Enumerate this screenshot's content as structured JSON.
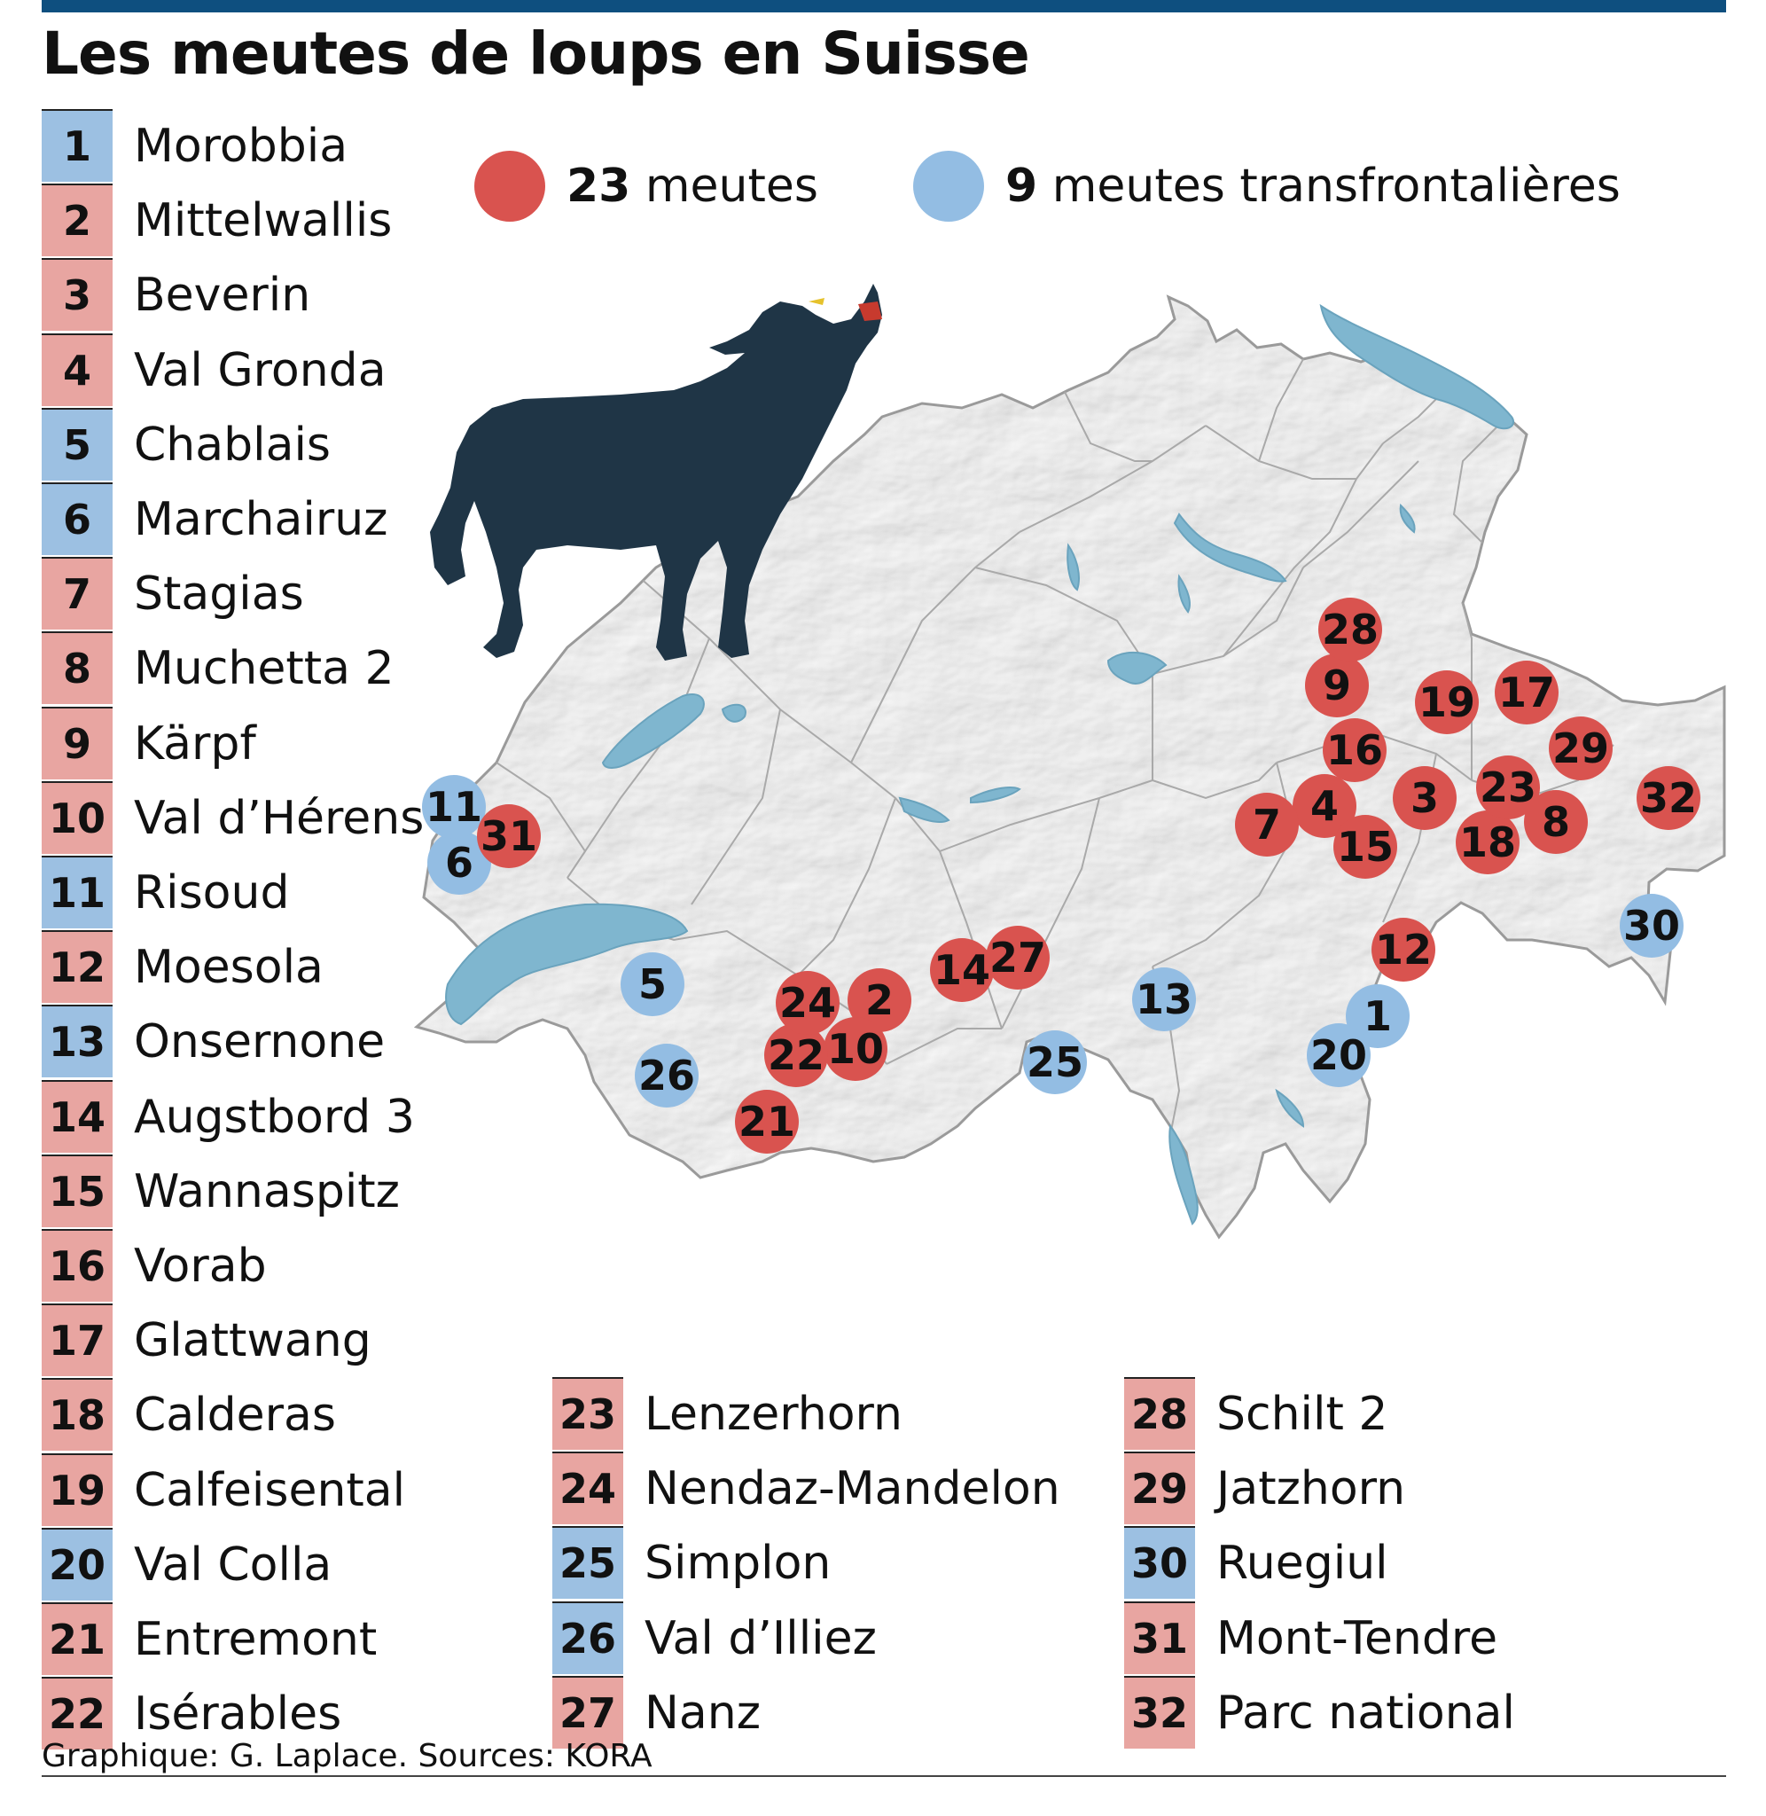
{
  "title": "Les meutes de loups en Suisse",
  "legend": {
    "packs": {
      "count": "23",
      "label": "meutes",
      "color": "#d9534f"
    },
    "cross_border": {
      "count": "9",
      "label": "meutes transfrontalières",
      "color": "#93bde3"
    }
  },
  "colors": {
    "pack_tile": "#e8a5a1",
    "cross_border_tile": "#9cc0e2",
    "wolf": "#1f3546",
    "lake": "#7fb6cf",
    "top_bar": "#0e4f7f"
  },
  "packs": [
    {
      "num": "1",
      "name": "Morobbia",
      "type": "cross_border"
    },
    {
      "num": "2",
      "name": "Mittelwallis",
      "type": "pack"
    },
    {
      "num": "3",
      "name": "Beverin",
      "type": "pack"
    },
    {
      "num": "4",
      "name": "Val Gronda",
      "type": "pack"
    },
    {
      "num": "5",
      "name": "Chablais",
      "type": "cross_border"
    },
    {
      "num": "6",
      "name": "Marchairuz",
      "type": "cross_border"
    },
    {
      "num": "7",
      "name": "Stagias",
      "type": "pack"
    },
    {
      "num": "8",
      "name": "Muchetta 2",
      "type": "pack"
    },
    {
      "num": "9",
      "name": "Kärpf",
      "type": "pack"
    },
    {
      "num": "10",
      "name": "Val d’Hérens",
      "type": "pack"
    },
    {
      "num": "11",
      "name": "Risoud",
      "type": "cross_border"
    },
    {
      "num": "12",
      "name": "Moesola",
      "type": "pack"
    },
    {
      "num": "13",
      "name": "Onsernone",
      "type": "cross_border"
    },
    {
      "num": "14",
      "name": "Augstbord 3",
      "type": "pack"
    },
    {
      "num": "15",
      "name": "Wannaspitz",
      "type": "pack"
    },
    {
      "num": "16",
      "name": "Vorab",
      "type": "pack"
    },
    {
      "num": "17",
      "name": "Glattwang",
      "type": "pack"
    },
    {
      "num": "18",
      "name": "Calderas",
      "type": "pack"
    },
    {
      "num": "19",
      "name": "Calfeisental",
      "type": "pack"
    },
    {
      "num": "20",
      "name": "Val Colla",
      "type": "cross_border"
    },
    {
      "num": "21",
      "name": "Entremont",
      "type": "pack"
    },
    {
      "num": "22",
      "name": "Isérables",
      "type": "pack"
    },
    {
      "num": "23",
      "name": "Lenzerhorn",
      "type": "pack"
    },
    {
      "num": "24",
      "name": "Nendaz-Mandelon",
      "type": "pack"
    },
    {
      "num": "25",
      "name": "Simplon",
      "type": "cross_border"
    },
    {
      "num": "26",
      "name": "Val d’Illiez",
      "type": "cross_border"
    },
    {
      "num": "27",
      "name": "Nanz",
      "type": "pack"
    },
    {
      "num": "28",
      "name": "Schilt 2",
      "type": "pack"
    },
    {
      "num": "29",
      "name": "Jatzhorn",
      "type": "pack"
    },
    {
      "num": "30",
      "name": "Ruegiul",
      "type": "cross_border"
    },
    {
      "num": "31",
      "name": "Mont-Tendre",
      "type": "pack"
    },
    {
      "num": "32",
      "name": "Parc national",
      "type": "pack"
    }
  ],
  "source": "Graphique: G. Laplace. Sources: KORA"
}
